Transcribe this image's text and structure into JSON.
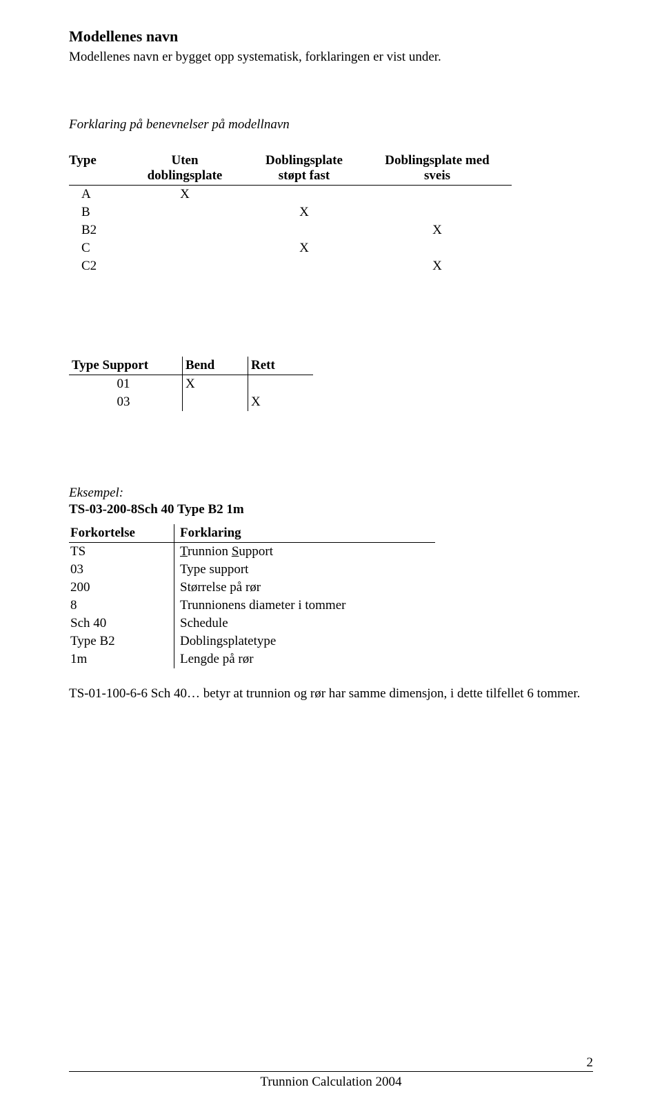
{
  "heading": "Modellenes navn",
  "intro": "Modellenes navn er bygget opp systematisk, forklaringen er vist under.",
  "t1_caption": "Forklaring på benevnelser på modellnavn",
  "t1": {
    "headers": {
      "type": "Type",
      "uten_l1": "Uten",
      "uten_l2": "doblingsplate",
      "stopt_l1": "Doblingsplate",
      "stopt_l2": "støpt fast",
      "med_l1": "Doblingsplate med",
      "med_l2": "sveis"
    },
    "rows": [
      {
        "type": "A",
        "uten": "X",
        "stopt": "",
        "med": ""
      },
      {
        "type": "B",
        "uten": "",
        "stopt": "X",
        "med": ""
      },
      {
        "type": "B2",
        "uten": "",
        "stopt": "",
        "med": "X"
      },
      {
        "type": "C",
        "uten": "",
        "stopt": "X",
        "med": ""
      },
      {
        "type": "C2",
        "uten": "",
        "stopt": "",
        "med": "X"
      }
    ]
  },
  "t2": {
    "headers": {
      "ts": "Type Support",
      "bend": "Bend",
      "rett": "Rett"
    },
    "rows": [
      {
        "ts": "01",
        "bend": "X",
        "rett": ""
      },
      {
        "ts": "03",
        "bend": "",
        "rett": "X"
      }
    ]
  },
  "eksempel_label": "Eksempel:",
  "eksempel_code": "TS-03-200-8Sch 40 Type B2 1m",
  "t3": {
    "headers": {
      "fk": "Forkortelse",
      "forkl": "Forklaring"
    },
    "rows": [
      {
        "fk": "TS",
        "forkl_pre": "",
        "forkl_html": "trunnion_support"
      },
      {
        "fk": "03",
        "forkl": "Type support"
      },
      {
        "fk": "200",
        "forkl": "Størrelse på rør"
      },
      {
        "fk": "8",
        "forkl": "Trunnionens diameter i tommer"
      },
      {
        "fk": "Sch 40",
        "forkl": "Schedule"
      },
      {
        "fk": "Type B2",
        "forkl": "Doblingsplatetype"
      },
      {
        "fk": "1m",
        "forkl": "Lengde på rør"
      }
    ],
    "trunnion_T": "T",
    "trunnion_r": "runnion ",
    "trunnion_S": "S",
    "trunnion_u": "upport"
  },
  "footnote": "TS-01-100-6-6 Sch 40… betyr at trunnion og rør har samme dimensjon, i dette tilfellet 6 tommer.",
  "footer_text": "Trunnion Calculation 2004",
  "page_number": "2"
}
